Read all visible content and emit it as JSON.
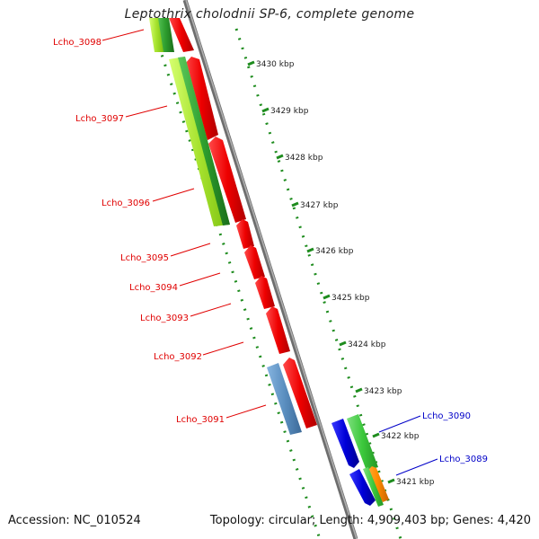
{
  "title": "Leptothrix cholodnii SP-6, complete genome",
  "footer": {
    "accession": "Accession: NC_010524",
    "summary": "Topology: circular; Length: 4,909,403 bp; Genes: 4,420"
  },
  "ruler_ticks": [
    "3430 kbp",
    "3429 kbp",
    "3428 kbp",
    "3427 kbp",
    "3426 kbp",
    "3425 kbp",
    "3424 kbp",
    "3423 kbp",
    "3422 kbp",
    "3421 kbp"
  ],
  "genes": [
    {
      "label": "Lcho_3098",
      "color": "#e00000"
    },
    {
      "label": "Lcho_3097",
      "color": "#e00000"
    },
    {
      "label": "Lcho_3096",
      "color": "#e00000"
    },
    {
      "label": "Lcho_3095",
      "color": "#e00000"
    },
    {
      "label": "Lcho_3094",
      "color": "#e00000"
    },
    {
      "label": "Lcho_3093",
      "color": "#e00000"
    },
    {
      "label": "Lcho_3092",
      "color": "#e00000"
    },
    {
      "label": "Lcho_3091",
      "color": "#e00000"
    },
    {
      "label": "Lcho_3090",
      "color": "#0000c8"
    },
    {
      "label": "Lcho_3089",
      "color": "#0000c8"
    }
  ],
  "colors": {
    "forward_cds": "#e00000",
    "reverse_cds": "#0000c8",
    "light_green": "#a6e22e",
    "dark_green": "#2e9e2e",
    "steel_blue": "#5b8fc0",
    "orange": "#ff8c00",
    "backbone": "#8c8c8c",
    "tick_green": "#1e8c1e"
  }
}
